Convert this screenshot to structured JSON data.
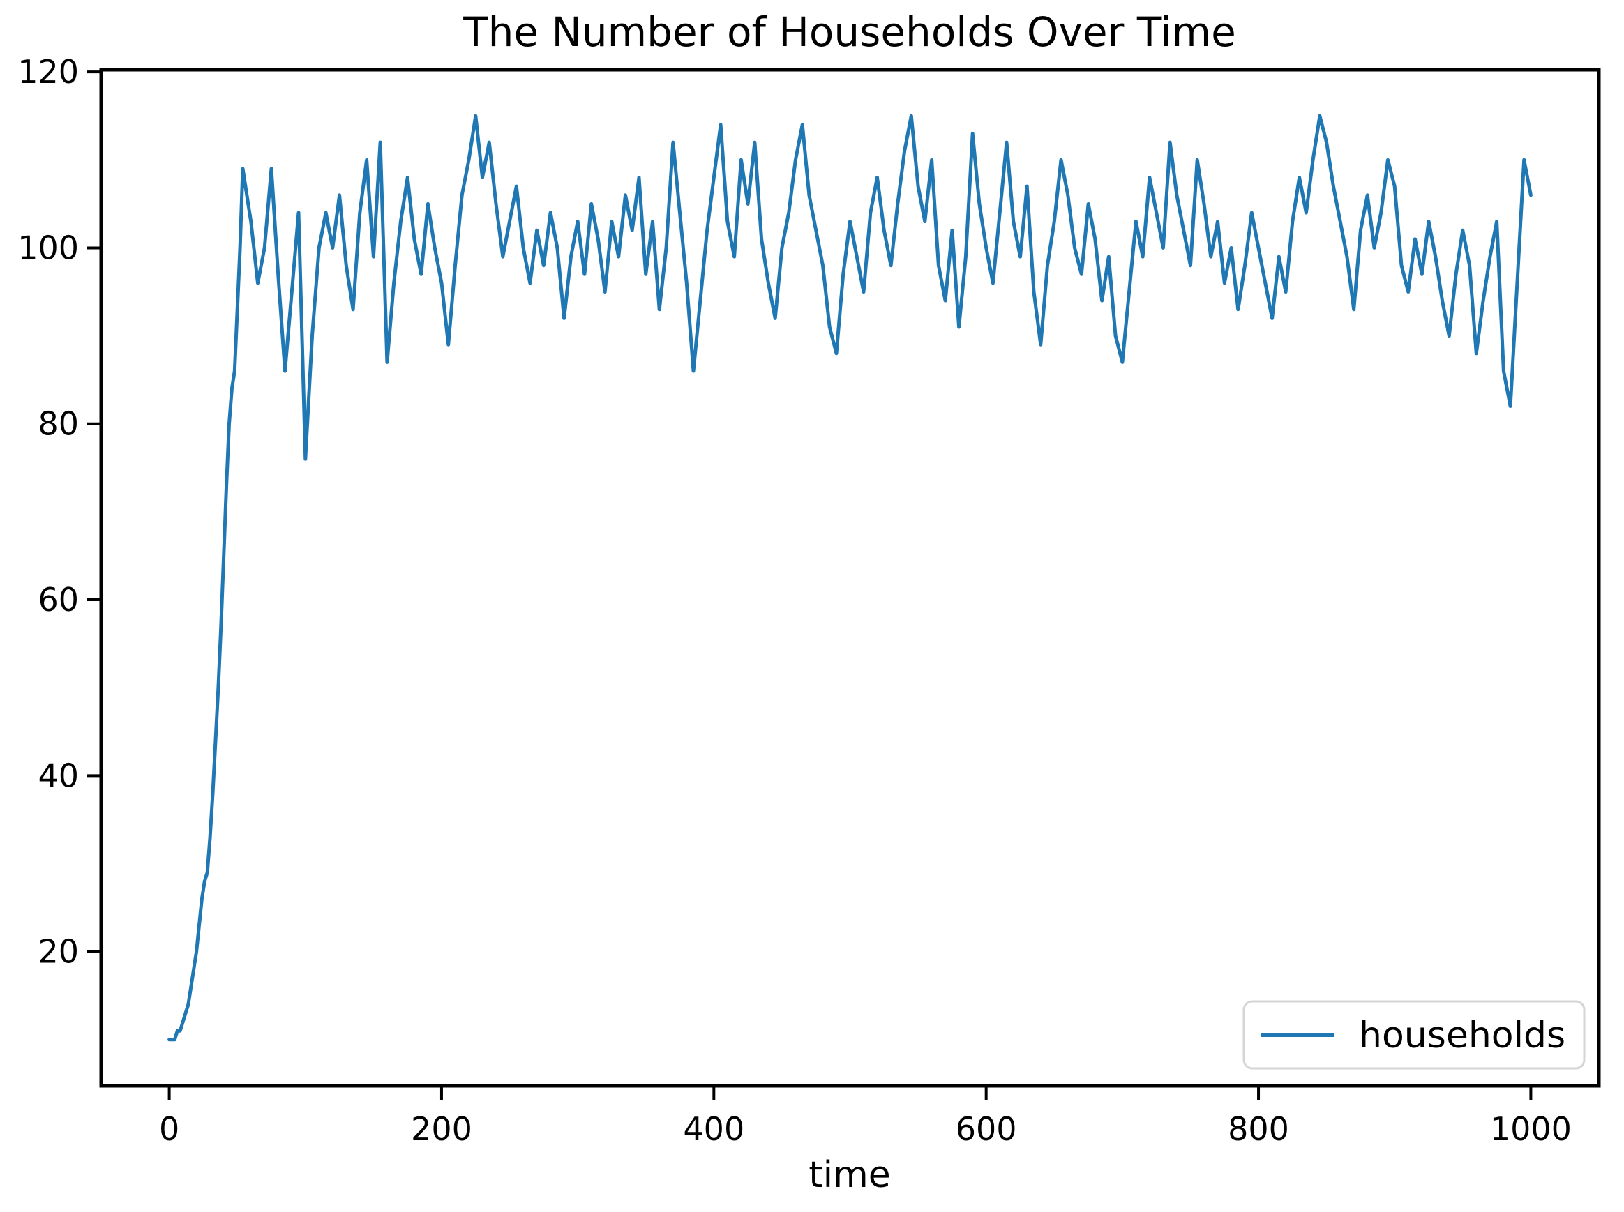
{
  "figure": {
    "background": "#ffffff"
  },
  "legend": {
    "position": "lower right",
    "entries": [
      {
        "label": "households",
        "color": "#1f77b4"
      }
    ]
  },
  "colors": {
    "line": "#1f77b4",
    "axis": "#000000",
    "text": "#000000",
    "legend_border": "#d5d5d5",
    "background": "#ffffff"
  },
  "chart_data": {
    "type": "line",
    "title": "The Number of Households Over Time",
    "xlabel": "time",
    "ylabel": "",
    "grid": false,
    "legend_position": "lower right",
    "x_ticks": [
      0,
      200,
      400,
      600,
      800,
      1000
    ],
    "y_ticks": [
      20,
      40,
      60,
      80,
      100,
      120
    ],
    "xlim": [
      -50,
      1050
    ],
    "ylim": [
      4.75,
      120.25
    ],
    "series": [
      {
        "name": "households",
        "color": "#1f77b4",
        "x": [
          0,
          2,
          4,
          6,
          8,
          10,
          12,
          14,
          16,
          18,
          20,
          22,
          24,
          26,
          28,
          30,
          32,
          34,
          36,
          38,
          40,
          42,
          44,
          46,
          48,
          50,
          52,
          54,
          60,
          65,
          70,
          75,
          80,
          85,
          90,
          95,
          100,
          105,
          110,
          115,
          120,
          125,
          130,
          135,
          140,
          145,
          150,
          155,
          160,
          165,
          170,
          175,
          180,
          185,
          190,
          195,
          200,
          205,
          210,
          215,
          220,
          225,
          230,
          235,
          240,
          245,
          250,
          255,
          260,
          265,
          270,
          275,
          280,
          285,
          290,
          295,
          300,
          305,
          310,
          315,
          320,
          325,
          330,
          335,
          340,
          345,
          350,
          355,
          360,
          365,
          370,
          375,
          380,
          385,
          390,
          395,
          400,
          405,
          410,
          415,
          420,
          425,
          430,
          435,
          440,
          445,
          450,
          455,
          460,
          465,
          470,
          475,
          480,
          485,
          490,
          495,
          500,
          505,
          510,
          515,
          520,
          525,
          530,
          535,
          540,
          545,
          550,
          555,
          560,
          565,
          570,
          575,
          580,
          585,
          590,
          595,
          600,
          605,
          610,
          615,
          620,
          625,
          630,
          635,
          640,
          645,
          650,
          655,
          660,
          665,
          670,
          675,
          680,
          685,
          690,
          695,
          700,
          705,
          710,
          715,
          720,
          725,
          730,
          735,
          740,
          745,
          750,
          755,
          760,
          765,
          770,
          775,
          780,
          785,
          790,
          795,
          800,
          805,
          810,
          815,
          820,
          825,
          830,
          835,
          840,
          845,
          850,
          855,
          860,
          865,
          870,
          875,
          880,
          885,
          890,
          895,
          900,
          905,
          910,
          915,
          920,
          925,
          930,
          935,
          940,
          945,
          950,
          955,
          960,
          965,
          970,
          975,
          980,
          985,
          990,
          995,
          1000
        ],
        "y": [
          10,
          10,
          10,
          11,
          11,
          12,
          13,
          14,
          16,
          18,
          20,
          23,
          26,
          28,
          29,
          33,
          38,
          44,
          50,
          57,
          65,
          73,
          80,
          84,
          86,
          93,
          100,
          109,
          103,
          96,
          100,
          109,
          97,
          86,
          95,
          104,
          76,
          90,
          100,
          104,
          100,
          106,
          98,
          93,
          104,
          110,
          99,
          112,
          87,
          96,
          103,
          108,
          101,
          97,
          105,
          100,
          96,
          89,
          98,
          106,
          110,
          115,
          108,
          112,
          105,
          99,
          103,
          107,
          100,
          96,
          102,
          98,
          104,
          100,
          92,
          99,
          103,
          97,
          105,
          101,
          95,
          103,
          99,
          106,
          102,
          108,
          97,
          103,
          93,
          100,
          112,
          104,
          96,
          86,
          94,
          102,
          108,
          114,
          103,
          99,
          110,
          105,
          112,
          101,
          96,
          92,
          100,
          104,
          110,
          114,
          106,
          102,
          98,
          91,
          88,
          97,
          103,
          99,
          95,
          104,
          108,
          102,
          98,
          105,
          111,
          115,
          107,
          103,
          110,
          98,
          94,
          102,
          91,
          99,
          113,
          105,
          100,
          96,
          104,
          112,
          103,
          99,
          107,
          95,
          89,
          98,
          103,
          110,
          106,
          100,
          97,
          105,
          101,
          94,
          99,
          90,
          87,
          95,
          103,
          99,
          108,
          104,
          100,
          112,
          106,
          102,
          98,
          110,
          105,
          99,
          103,
          96,
          100,
          93,
          98,
          104,
          100,
          96,
          92,
          99,
          95,
          103,
          108,
          104,
          110,
          115,
          112,
          107,
          103,
          99,
          93,
          102,
          106,
          100,
          104,
          110,
          107,
          98,
          95,
          101,
          97,
          103,
          99,
          94,
          90,
          97,
          102,
          98,
          88,
          94,
          99,
          103,
          86,
          82,
          96,
          110,
          106
        ]
      }
    ]
  }
}
